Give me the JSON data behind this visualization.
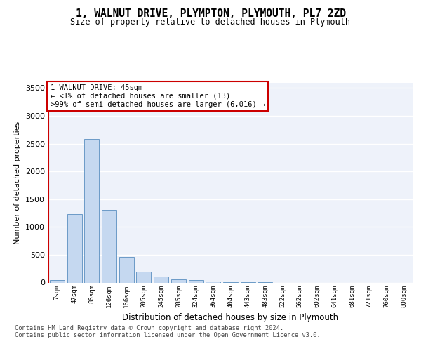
{
  "title": "1, WALNUT DRIVE, PLYMPTON, PLYMOUTH, PL7 2ZD",
  "subtitle": "Size of property relative to detached houses in Plymouth",
  "xlabel": "Distribution of detached houses by size in Plymouth",
  "ylabel": "Number of detached properties",
  "bar_color": "#c5d8f0",
  "bar_edge_color": "#5a8fc0",
  "highlight_line_color": "#cc0000",
  "categories": [
    "7sqm",
    "47sqm",
    "86sqm",
    "126sqm",
    "166sqm",
    "205sqm",
    "245sqm",
    "285sqm",
    "324sqm",
    "364sqm",
    "404sqm",
    "443sqm",
    "483sqm",
    "522sqm",
    "562sqm",
    "602sqm",
    "641sqm",
    "681sqm",
    "721sqm",
    "760sqm",
    "800sqm"
  ],
  "values": [
    50,
    1230,
    2580,
    1310,
    460,
    190,
    110,
    55,
    40,
    25,
    10,
    5,
    5,
    0,
    0,
    0,
    0,
    0,
    0,
    0,
    0
  ],
  "annotation_text": "1 WALNUT DRIVE: 45sqm\n← <1% of detached houses are smaller (13)\n>99% of semi-detached houses are larger (6,016) →",
  "ylim": [
    0,
    3600
  ],
  "yticks": [
    0,
    500,
    1000,
    1500,
    2000,
    2500,
    3000,
    3500
  ],
  "footer_line1": "Contains HM Land Registry data © Crown copyright and database right 2024.",
  "footer_line2": "Contains public sector information licensed under the Open Government Licence v3.0.",
  "background_color": "#eef2fa",
  "grid_color": "#ffffff",
  "fig_background": "#ffffff"
}
